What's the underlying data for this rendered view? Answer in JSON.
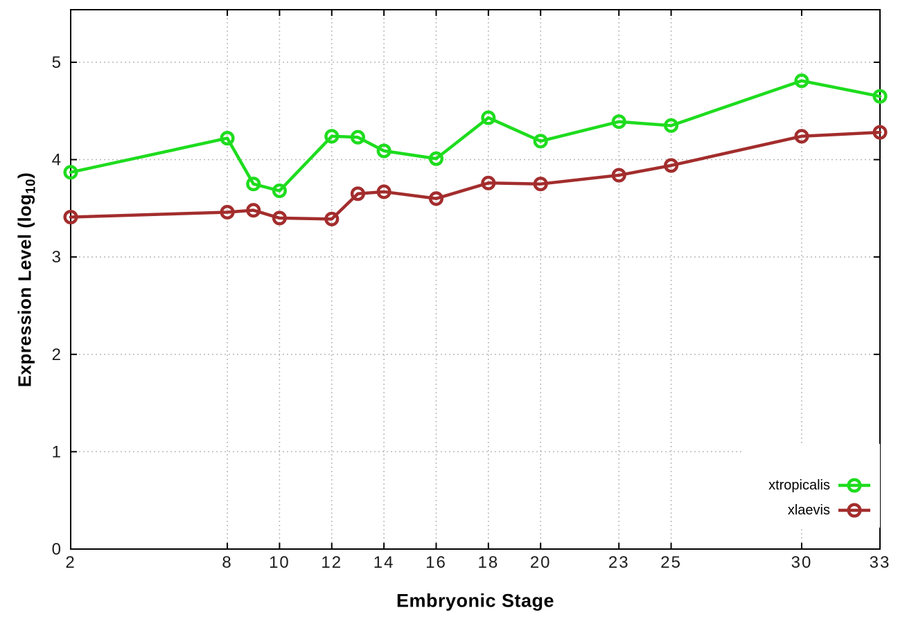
{
  "chart_data": {
    "type": "line",
    "title": "",
    "xlabel": "Embryonic Stage",
    "ylabel": "Expression Level (log10)",
    "ylabel_parts": {
      "pre": "Expression Level (log",
      "sub": "10",
      "post": ")"
    },
    "x": [
      2,
      8,
      9,
      10,
      12,
      13,
      14,
      16,
      18,
      20,
      23,
      25,
      30,
      33
    ],
    "series": [
      {
        "name": "xtropicalis",
        "color": "#1edc1e",
        "values": [
          3.87,
          4.22,
          3.75,
          3.68,
          4.24,
          4.23,
          4.09,
          4.01,
          4.43,
          4.19,
          4.39,
          4.35,
          4.81,
          4.65
        ]
      },
      {
        "name": "xlaevis",
        "color": "#a32d2d",
        "values": [
          3.41,
          3.46,
          3.48,
          3.4,
          3.39,
          3.65,
          3.67,
          3.6,
          3.76,
          3.75,
          3.84,
          3.94,
          4.24,
          4.28
        ]
      }
    ],
    "xticks": [
      2,
      8,
      10,
      12,
      14,
      16,
      18,
      20,
      23,
      25,
      30,
      33
    ],
    "yticks": [
      0,
      1,
      2,
      3,
      4,
      5
    ],
    "xlim": [
      2,
      33
    ],
    "ylim": [
      0,
      5.54
    ],
    "grid": "dotted",
    "legend_position": "inside bottom-right",
    "marker": "open-circle",
    "line_width": 4.5,
    "marker_radius": 8.3,
    "marker_stroke": 4.5
  },
  "styles": {
    "background": "#ffffff",
    "axis_color": "#000000",
    "grid_color": "#b8b8b8",
    "tick_label_color": "#1c1c1c"
  }
}
